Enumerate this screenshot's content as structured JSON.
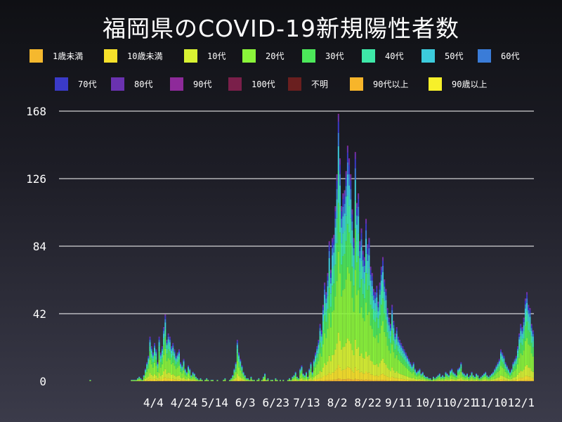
{
  "chart_data": {
    "type": "bar",
    "stacked": true,
    "title": "福岡県のCOVID-19新規陽性者数",
    "xlabel": "",
    "ylabel": "",
    "ylim": [
      0,
      168
    ],
    "yticks": [
      0,
      42,
      84,
      126,
      168
    ],
    "grid": true,
    "legend_position": "top",
    "x_tick_labels": [
      "4/4",
      "4/24",
      "5/14",
      "6/3",
      "6/23",
      "7/13",
      "8/2",
      "8/22",
      "9/11",
      "10/1",
      "10/21",
      "11/10",
      "12/1"
    ],
    "series": [
      {
        "name": "1歳未満",
        "color": "#f5b82e"
      },
      {
        "name": "10歳未満",
        "color": "#f7e12a"
      },
      {
        "name": "10代",
        "color": "#d8f232"
      },
      {
        "name": "20代",
        "color": "#8af53a"
      },
      {
        "name": "30代",
        "color": "#4ce85a"
      },
      {
        "name": "40代",
        "color": "#3ee8a8"
      },
      {
        "name": "50代",
        "color": "#3ccbdc"
      },
      {
        "name": "60代",
        "color": "#3a7cd8"
      },
      {
        "name": "70代",
        "color": "#3a3ac8"
      },
      {
        "name": "80代",
        "color": "#6a32b0"
      },
      {
        "name": "90代",
        "color": "#8e2a9a"
      },
      {
        "name": "100代",
        "color": "#7a1f4a"
      },
      {
        "name": "不明",
        "color": "#6a1f1f"
      },
      {
        "name": "90代以上",
        "color": "#f7b52a"
      },
      {
        "name": "90歳以上",
        "color": "#f7f02a"
      }
    ],
    "daily_totals": [
      0,
      0,
      0,
      0,
      0,
      0,
      0,
      0,
      0,
      0,
      0,
      0,
      0,
      0,
      0,
      0,
      0,
      0,
      0,
      1,
      0,
      0,
      0,
      0,
      0,
      0,
      0,
      0,
      0,
      0,
      0,
      0,
      0,
      0,
      0,
      0,
      0,
      0,
      0,
      0,
      0,
      0,
      0,
      0,
      0,
      0,
      1,
      1,
      1,
      1,
      2,
      3,
      2,
      1,
      4,
      8,
      12,
      16,
      28,
      22,
      18,
      24,
      20,
      12,
      28,
      18,
      22,
      34,
      42,
      26,
      30,
      28,
      22,
      24,
      20,
      16,
      18,
      20,
      12,
      10,
      14,
      8,
      6,
      10,
      8,
      4,
      6,
      5,
      3,
      2,
      1,
      2,
      1,
      0,
      1,
      2,
      1,
      0,
      1,
      1,
      0,
      0,
      1,
      0,
      0,
      0,
      1,
      2,
      0,
      0,
      1,
      2,
      4,
      8,
      12,
      26,
      18,
      14,
      10,
      6,
      4,
      2,
      2,
      1,
      3,
      1,
      1,
      0,
      1,
      2,
      0,
      1,
      3,
      5,
      1,
      2,
      0,
      1,
      1,
      0,
      2,
      1,
      0,
      1,
      0,
      1,
      0,
      0,
      1,
      2,
      1,
      3,
      4,
      6,
      3,
      2,
      8,
      10,
      5,
      4,
      6,
      3,
      8,
      12,
      6,
      14,
      18,
      22,
      26,
      36,
      32,
      48,
      62,
      56,
      68,
      88,
      70,
      90,
      92,
      110,
      130,
      168,
      140,
      110,
      118,
      120,
      132,
      148,
      140,
      130,
      108,
      90,
      144,
      112,
      118,
      88,
      96,
      82,
      78,
      102,
      86,
      90,
      72,
      68,
      58,
      56,
      60,
      50,
      62,
      72,
      78,
      64,
      58,
      46,
      40,
      36,
      48,
      38,
      30,
      34,
      28,
      26,
      24,
      22,
      20,
      18,
      16,
      14,
      12,
      10,
      12,
      8,
      6,
      7,
      8,
      5,
      6,
      4,
      3,
      3,
      2,
      2,
      1,
      3,
      2,
      3,
      4,
      5,
      3,
      4,
      3,
      6,
      5,
      4,
      7,
      8,
      6,
      5,
      4,
      8,
      9,
      12,
      6,
      5,
      4,
      5,
      3,
      4,
      6,
      4,
      3,
      5,
      4,
      2,
      3,
      4,
      5,
      6,
      4,
      3,
      4,
      5,
      6,
      8,
      10,
      12,
      14,
      20,
      18,
      16,
      12,
      10,
      8,
      6,
      8,
      12,
      14,
      16,
      22,
      30,
      36,
      34,
      40,
      52,
      56,
      48,
      46,
      36,
      32
    ]
  }
}
